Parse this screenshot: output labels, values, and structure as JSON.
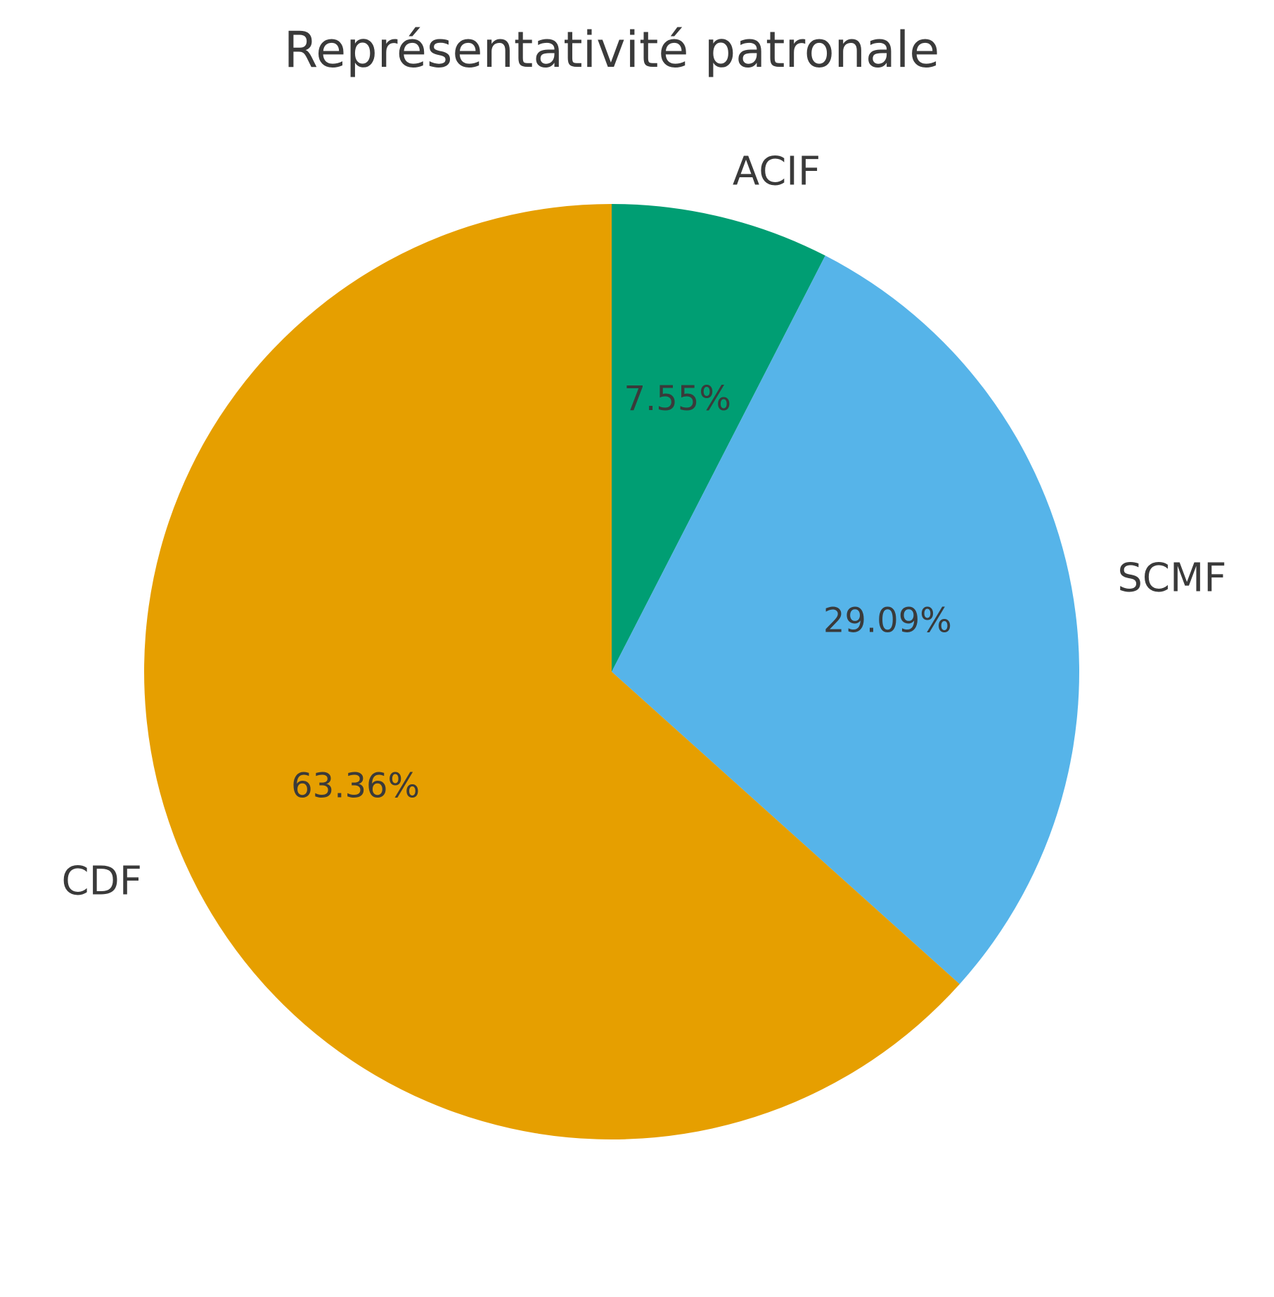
{
  "chart_data": {
    "type": "pie",
    "title": "Représentativité patronale",
    "start_angle_deg": 90,
    "direction": "clockwise",
    "slices": [
      {
        "label": "ACIF",
        "value": 7.55,
        "pct_text": "7.55%",
        "color": "#009E73"
      },
      {
        "label": "SCMF",
        "value": 29.09,
        "pct_text": "29.09%",
        "color": "#56B4E9"
      },
      {
        "label": "CDF",
        "value": 63.36,
        "pct_text": "63.36%",
        "color": "#E69F00"
      }
    ]
  }
}
